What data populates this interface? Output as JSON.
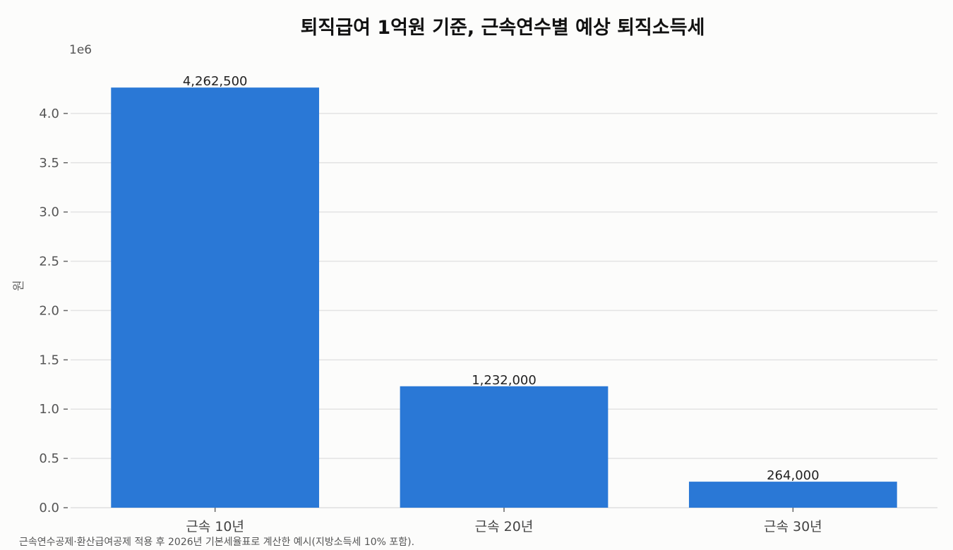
{
  "chart_data": {
    "type": "bar",
    "title": "퇴직급여 1억원 기준, 근속연수별 예상 퇴직소득세",
    "ylabel": "원",
    "xlabel": "",
    "y_multiplier_label": "1e6",
    "categories": [
      "근속 10년",
      "근속 20년",
      "근속 30년"
    ],
    "values": [
      4262500,
      1232000,
      264000
    ],
    "value_labels": [
      "4,262,500",
      "1,232,000",
      "264,000"
    ],
    "ylim": [
      0,
      4.6
    ],
    "yticks": [
      0.0,
      0.5,
      1.0,
      1.5,
      2.0,
      2.5,
      3.0,
      3.5,
      4.0
    ],
    "ytick_labels": [
      "0.0",
      "0.5",
      "1.0",
      "1.5",
      "2.0",
      "2.5",
      "3.0",
      "3.5",
      "4.0"
    ],
    "y_scale": 1000000,
    "grid": true,
    "colors": {
      "bar": "#2a78d6",
      "grid": "#e3e3e3",
      "background": "#fcfcfb"
    },
    "footnote": "근속연수공제·환산급여공제 적용 후 2026년 기본세율표로 계산한 예시(지방소득세 10% 포함)."
  }
}
